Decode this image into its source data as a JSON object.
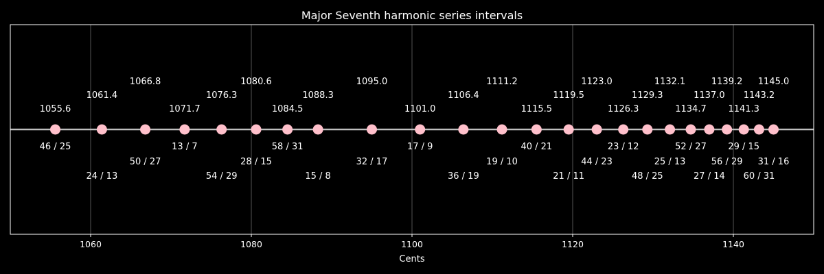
{
  "chart_data": {
    "type": "scatter",
    "title": "Major Seventh harmonic series intervals",
    "xlabel": "Cents",
    "ylabel": "",
    "xlim": [
      1050,
      1150
    ],
    "xticks": [
      1060,
      1080,
      1100,
      1120,
      1140
    ],
    "grid": "vertical",
    "colors": {
      "background": "#000000",
      "point": "#ffc0cb",
      "line": "#bfbfbf",
      "grid": "#555555",
      "text": "#ffffff",
      "frame": "#ffffff"
    },
    "points": [
      {
        "cents": 1055.6,
        "cents_label": "1055.6",
        "ratio": "46 / 25"
      },
      {
        "cents": 1061.4,
        "cents_label": "1061.4",
        "ratio": "24 / 13"
      },
      {
        "cents": 1066.8,
        "cents_label": "1066.8",
        "ratio": "50 / 27"
      },
      {
        "cents": 1071.7,
        "cents_label": "1071.7",
        "ratio": "13 / 7"
      },
      {
        "cents": 1076.3,
        "cents_label": "1076.3",
        "ratio": "54 / 29"
      },
      {
        "cents": 1080.6,
        "cents_label": "1080.6",
        "ratio": "28 / 15"
      },
      {
        "cents": 1084.5,
        "cents_label": "1084.5",
        "ratio": "58 / 31"
      },
      {
        "cents": 1088.3,
        "cents_label": "1088.3",
        "ratio": "15 / 8"
      },
      {
        "cents": 1095.0,
        "cents_label": "1095.0",
        "ratio": "32 / 17"
      },
      {
        "cents": 1101.0,
        "cents_label": "1101.0",
        "ratio": "17 / 9"
      },
      {
        "cents": 1106.4,
        "cents_label": "1106.4",
        "ratio": "36 / 19"
      },
      {
        "cents": 1111.2,
        "cents_label": "1111.2",
        "ratio": "19 / 10"
      },
      {
        "cents": 1115.5,
        "cents_label": "1115.5",
        "ratio": "40 / 21"
      },
      {
        "cents": 1119.5,
        "cents_label": "1119.5",
        "ratio": "21 / 11"
      },
      {
        "cents": 1123.0,
        "cents_label": "1123.0",
        "ratio": "44 / 23"
      },
      {
        "cents": 1126.3,
        "cents_label": "1126.3",
        "ratio": "23 / 12"
      },
      {
        "cents": 1129.3,
        "cents_label": "1129.3",
        "ratio": "48 / 25"
      },
      {
        "cents": 1132.1,
        "cents_label": "1132.1",
        "ratio": "25 / 13"
      },
      {
        "cents": 1134.7,
        "cents_label": "1134.7",
        "ratio": "52 / 27"
      },
      {
        "cents": 1137.0,
        "cents_label": "1137.0",
        "ratio": "27 / 14"
      },
      {
        "cents": 1139.2,
        "cents_label": "1139.2",
        "ratio": "56 / 29"
      },
      {
        "cents": 1141.3,
        "cents_label": "1141.3",
        "ratio": "29 / 15"
      },
      {
        "cents": 1143.2,
        "cents_label": "1143.2",
        "ratio": "60 / 31"
      },
      {
        "cents": 1145.0,
        "cents_label": "1145.0",
        "ratio": "31 / 16"
      }
    ]
  }
}
